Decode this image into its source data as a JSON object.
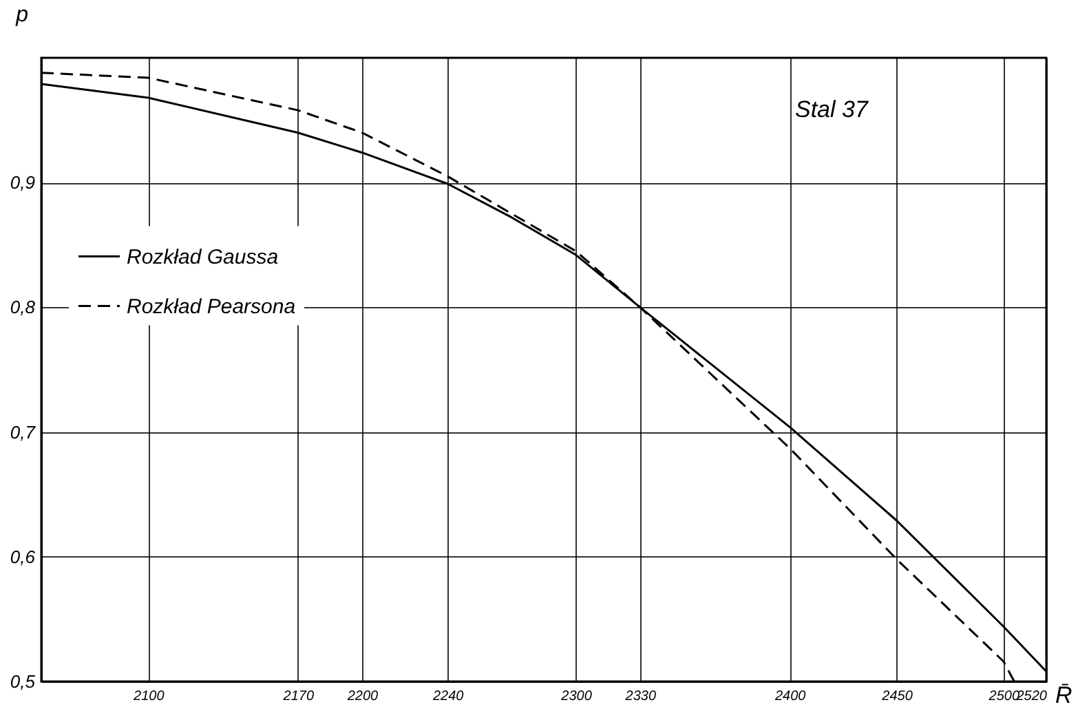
{
  "chart_data": {
    "type": "line",
    "xlabel": "R̄",
    "ylabel": "p",
    "annotations": [
      "Stal 37"
    ],
    "xlim": [
      2050,
      2520
    ],
    "ylim": [
      0.5,
      1.0
    ],
    "xticks": [
      2100,
      2170,
      2200,
      2240,
      2300,
      2330,
      2400,
      2450,
      2500,
      2520
    ],
    "yticks": [
      {
        "value": 0.5,
        "label": "0,5"
      },
      {
        "value": 0.6,
        "label": "0,6"
      },
      {
        "value": 0.7,
        "label": "0,7"
      },
      {
        "value": 0.8,
        "label": "0,8"
      },
      {
        "value": 0.9,
        "label": "0,9"
      }
    ],
    "grid": true,
    "legend": "left",
    "marker": "none",
    "series": [
      {
        "name": "Rozkład Gaussa",
        "color": "#000000",
        "line_style": "solid",
        "x": [
          2050,
          2100,
          2170,
          2200,
          2240,
          2270,
          2300,
          2330,
          2400,
          2450,
          2500,
          2520
        ],
        "values": [
          0.979,
          0.968,
          0.94,
          0.924,
          0.899,
          0.872,
          0.842,
          0.8,
          0.704,
          0.629,
          0.544,
          0.508
        ]
      },
      {
        "name": "Rozkład Pearsona",
        "color": "#000000",
        "line_style": "dashed",
        "x": [
          2050,
          2100,
          2170,
          2200,
          2240,
          2270,
          2300,
          2330,
          2400,
          2450,
          2500,
          2505
        ],
        "values": [
          0.988,
          0.984,
          0.958,
          0.94,
          0.905,
          0.875,
          0.845,
          0.8,
          0.687,
          0.598,
          0.516,
          0.5
        ]
      }
    ]
  }
}
